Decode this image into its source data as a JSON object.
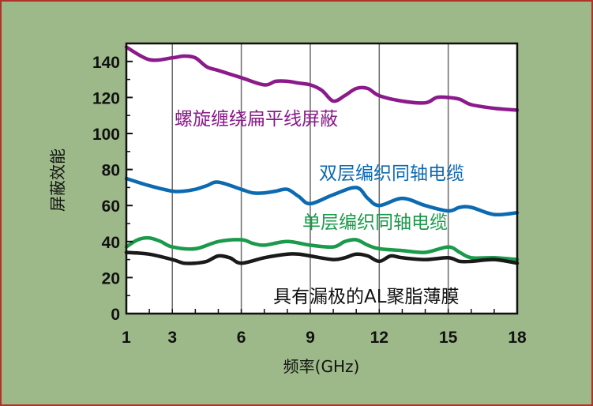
{
  "chart_data": {
    "type": "line",
    "xlabel": "频率(GHz)",
    "ylabel": "屏蔽效能",
    "xlim": [
      1,
      18
    ],
    "ylim": [
      0,
      150
    ],
    "x_ticks": [
      1,
      3,
      6,
      9,
      12,
      15,
      18
    ],
    "y_ticks": [
      0,
      20,
      40,
      60,
      80,
      100,
      120,
      140
    ],
    "series": [
      {
        "name": "螺旋缠绕扁平线屏蔽",
        "color": "#8b1a8b",
        "x": [
          1,
          2,
          3,
          3.5,
          4,
          4.5,
          5,
          6,
          7,
          7.5,
          8,
          8.5,
          9,
          9.5,
          10,
          10.5,
          11,
          11.5,
          12,
          13,
          14,
          14.5,
          15,
          15.5,
          16,
          17,
          18
        ],
        "y": [
          148,
          141,
          142,
          143,
          142,
          137,
          135,
          131,
          127,
          129,
          129,
          128,
          127,
          124,
          118,
          121,
          125,
          125,
          121,
          118,
          117,
          120,
          120,
          119,
          116,
          114,
          113
        ]
      },
      {
        "name": "双层编织同轴电缆",
        "color": "#0b6ab0",
        "x": [
          1,
          2,
          3,
          3.5,
          4,
          4.5,
          5,
          6,
          6.5,
          7,
          7.5,
          8,
          8.5,
          9,
          10,
          11,
          11.5,
          12,
          13,
          14,
          15,
          15.5,
          16,
          17,
          18
        ],
        "y": [
          75,
          71,
          68,
          68,
          69,
          71,
          73,
          69,
          67,
          67,
          68,
          69,
          65,
          61,
          66,
          70,
          64,
          60,
          64,
          60,
          57,
          59,
          59,
          55,
          56
        ]
      },
      {
        "name": "单层编织同轴电缆",
        "color": "#1a9a4a",
        "x": [
          1,
          1.5,
          2,
          2.5,
          3,
          4,
          5,
          6,
          6.5,
          7,
          8,
          9,
          10,
          10.5,
          11,
          11.5,
          12,
          13,
          14,
          15,
          15.5,
          16,
          17,
          18
        ],
        "y": [
          37,
          41,
          42,
          40,
          37,
          36,
          40,
          41,
          39,
          38,
          40,
          38,
          37,
          40,
          41,
          38,
          36,
          35,
          34,
          37,
          34,
          31,
          31,
          30
        ]
      },
      {
        "name": "具有漏极的AL聚脂薄膜",
        "color": "#1a1a1a",
        "x": [
          1,
          2,
          3,
          3.5,
          4,
          4.5,
          5,
          5.5,
          6,
          7,
          8,
          8.5,
          9,
          10,
          10.5,
          11,
          11.5,
          12,
          12.5,
          13,
          14,
          15,
          15.5,
          16,
          17,
          18
        ],
        "y": [
          34,
          33,
          30,
          28,
          28,
          29,
          32,
          31,
          28,
          31,
          33,
          33,
          32,
          30,
          31,
          33,
          32,
          29,
          32,
          31,
          30,
          31,
          29,
          29,
          30,
          28
        ]
      }
    ]
  }
}
